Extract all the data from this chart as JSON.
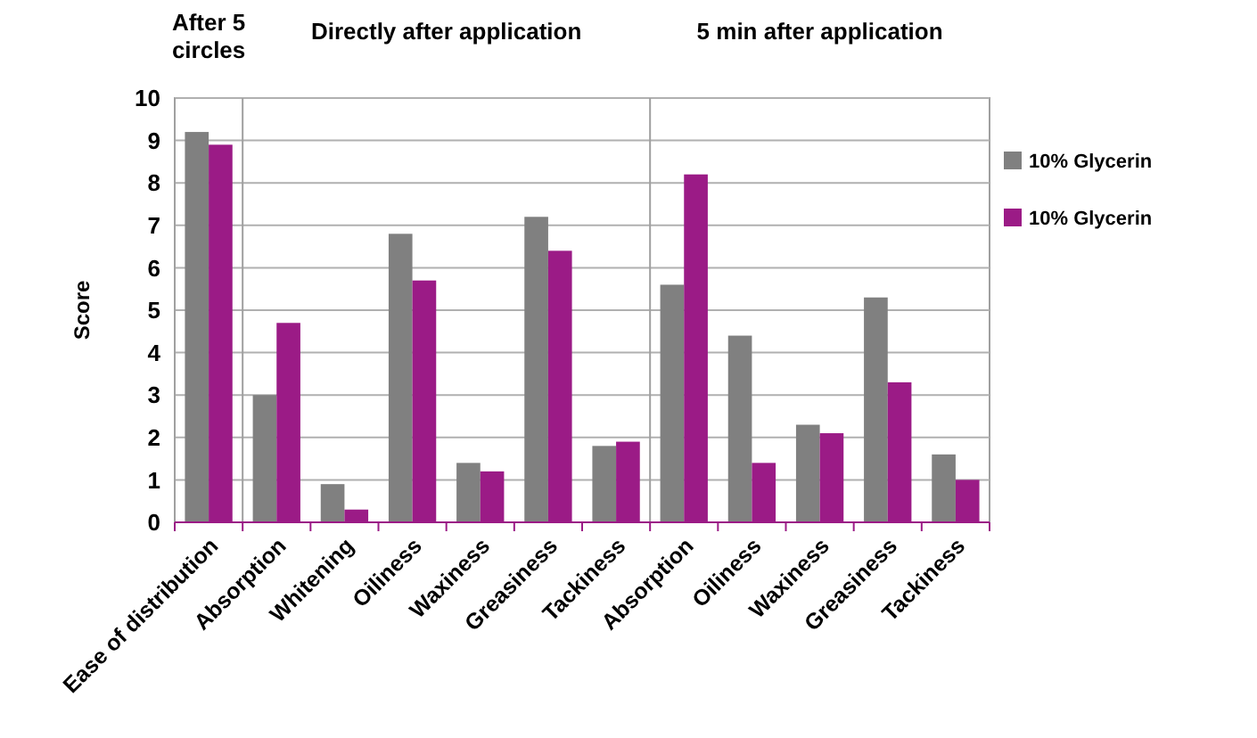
{
  "chart_data": {
    "type": "bar",
    "ylabel": "Score",
    "categories": [
      "Ease of distribution",
      "Absorption",
      "Whitening",
      "Oiliness",
      "Waxiness",
      "Greasiness",
      "Tackiness",
      "Absorption",
      "Oiliness",
      "Waxiness",
      "Greasiness",
      "Tackiness"
    ],
    "series": [
      {
        "name": "10% Glycerin",
        "color": "#808080",
        "values": [
          9.2,
          3.0,
          0.9,
          6.8,
          1.4,
          7.2,
          1.8,
          5.6,
          4.4,
          2.3,
          5.3,
          1.6
        ]
      },
      {
        "name": "10% Glycerin",
        "color": "#9b1b86",
        "values": [
          8.9,
          4.7,
          0.3,
          5.7,
          1.2,
          6.4,
          1.9,
          8.2,
          1.4,
          2.1,
          3.3,
          1.0
        ]
      }
    ],
    "ylim": [
      0,
      10
    ],
    "yticks": [
      0,
      1,
      2,
      3,
      4,
      5,
      6,
      7,
      8,
      9,
      10
    ],
    "grid": "y",
    "legend": "right",
    "annotations": [
      "After 5 circles",
      "Directly after application",
      "5 min after application"
    ]
  }
}
